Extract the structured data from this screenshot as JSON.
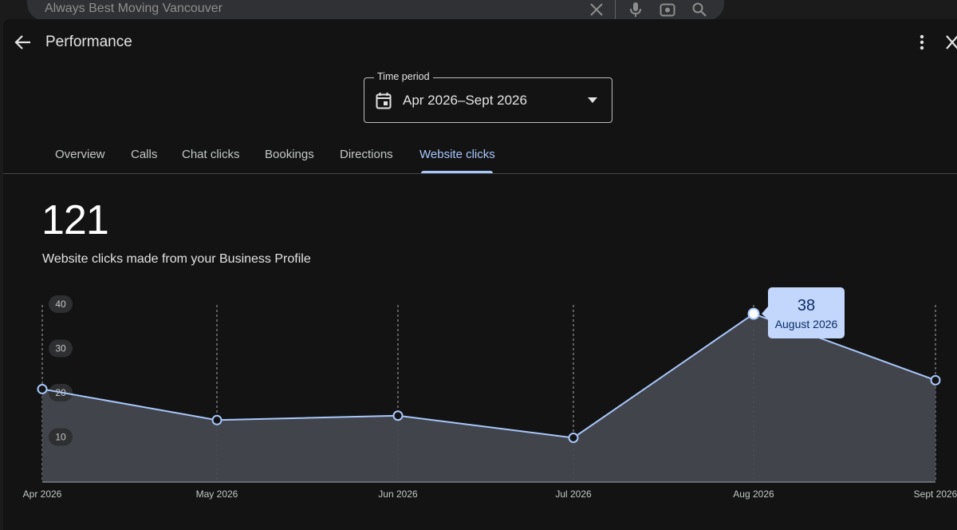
{
  "search": {
    "query": "Always Best Moving Vancouver"
  },
  "header": {
    "title": "Performance"
  },
  "time_period": {
    "label": "Time period",
    "value": "Apr 2026–Sept 2026"
  },
  "tabs": [
    {
      "label": "Overview"
    },
    {
      "label": "Calls"
    },
    {
      "label": "Chat clicks"
    },
    {
      "label": "Bookings"
    },
    {
      "label": "Directions"
    },
    {
      "label": "Website clicks",
      "active": true
    }
  ],
  "summary": {
    "total": "121",
    "description": "Website clicks made from your Business Profile"
  },
  "tooltip": {
    "value": "38",
    "label": "August 2026"
  },
  "colors": {
    "accent": "#a8c7fa",
    "line": "#a8c7fa",
    "area_fill": "#44474f",
    "background": "#131314"
  },
  "chart_data": {
    "type": "area",
    "categories": [
      "Apr 2026",
      "May 2026",
      "Jun 2026",
      "Jul 2026",
      "Aug 2026",
      "Sept 2026"
    ],
    "values": [
      21,
      14,
      15,
      10,
      38,
      23
    ],
    "ylim": [
      0,
      40
    ],
    "yticks": [
      "40",
      "30",
      "20",
      "10"
    ],
    "grid": "vertical dashed lines at each category",
    "highlighted_category": "Aug 2026"
  }
}
